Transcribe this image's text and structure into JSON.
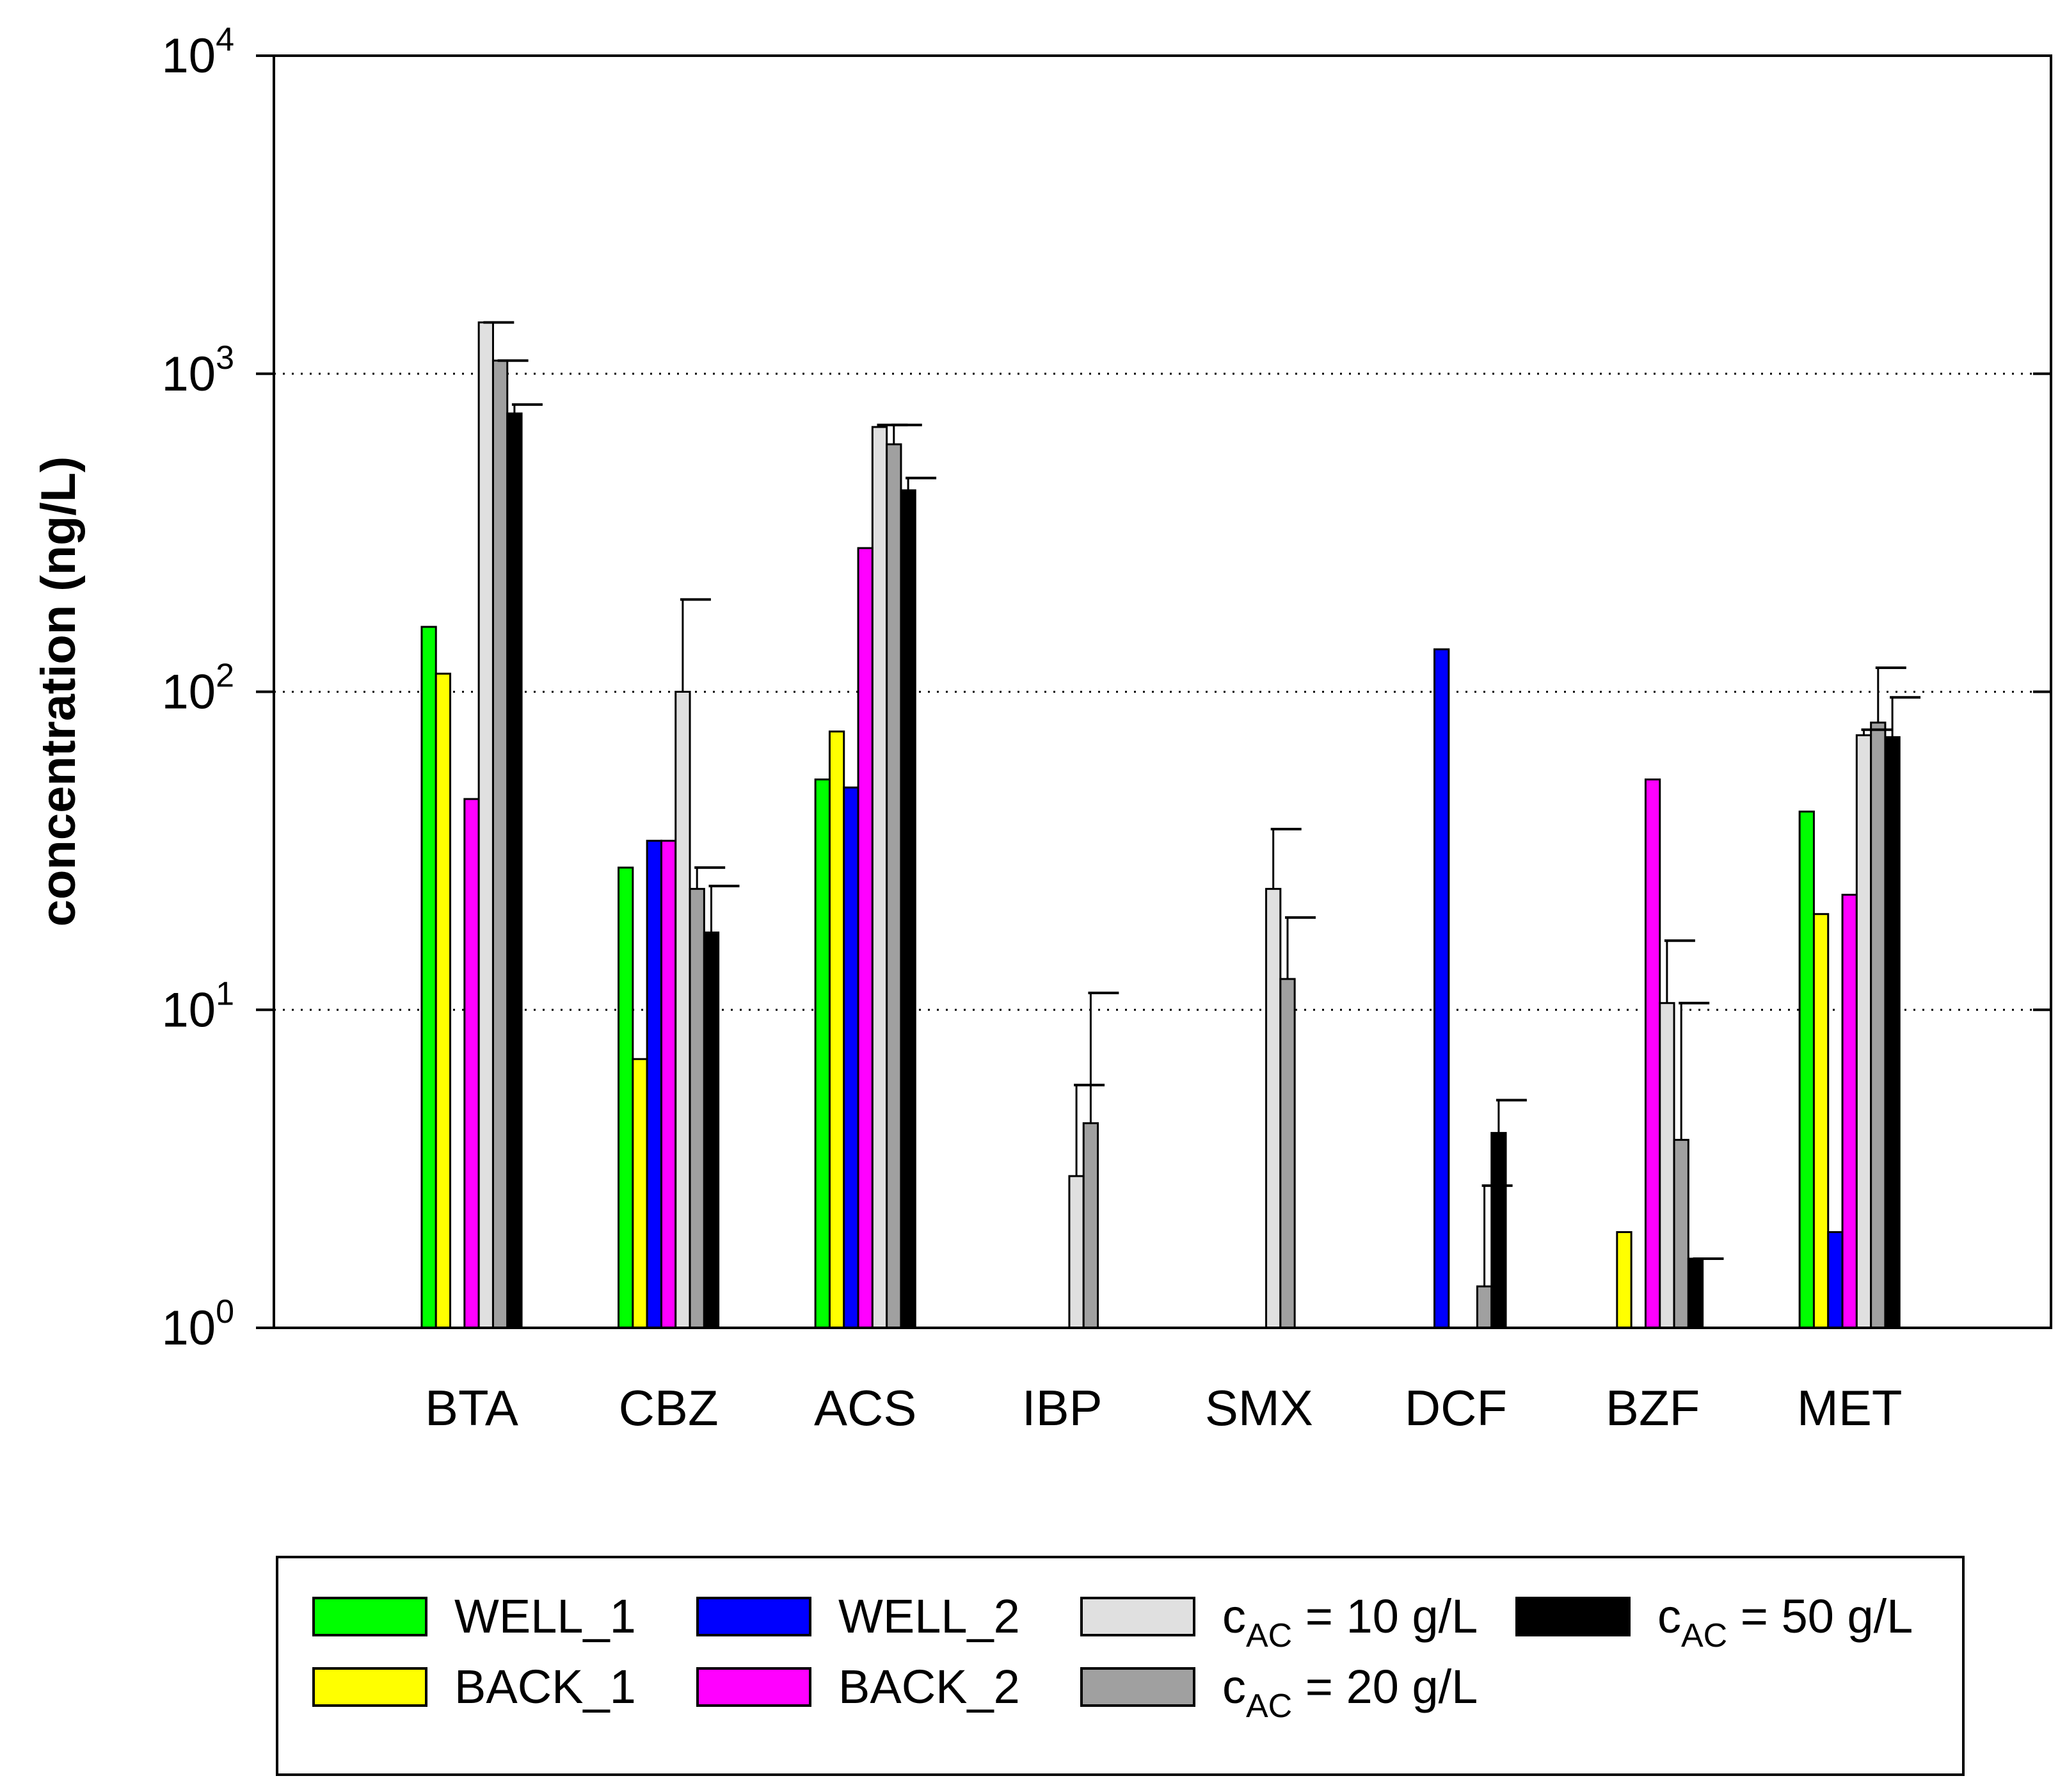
{
  "chart_data": {
    "type": "bar",
    "yscale": "log",
    "ylabel": "concentration (ng/L)",
    "ylim": [
      1,
      10000
    ],
    "y_ticks": [
      {
        "base": "10",
        "exp": "0",
        "value": 1
      },
      {
        "base": "10",
        "exp": "1",
        "value": 10
      },
      {
        "base": "10",
        "exp": "2",
        "value": 100
      },
      {
        "base": "10",
        "exp": "3",
        "value": 1000
      },
      {
        "base": "10",
        "exp": "4",
        "value": 10000
      }
    ],
    "gridlines": [
      10,
      100,
      1000
    ],
    "categories": [
      "BTA",
      "CBZ",
      "ACS",
      "IBP",
      "SMX",
      "DCF",
      "BZF",
      "MET"
    ],
    "series": [
      {
        "name": "WELL_1",
        "color": "#00ff00",
        "values": [
          160,
          28,
          53,
          null,
          null,
          null,
          null,
          42
        ],
        "errors": [
          null,
          null,
          null,
          null,
          null,
          null,
          null,
          null
        ]
      },
      {
        "name": "BACK_1",
        "color": "#ffff00",
        "values": [
          114,
          7,
          75,
          null,
          null,
          null,
          2,
          20
        ],
        "errors": [
          null,
          null,
          null,
          null,
          null,
          null,
          null,
          null
        ]
      },
      {
        "name": "WELL_2",
        "color": "#0000ff",
        "values": [
          null,
          34,
          50,
          null,
          null,
          136,
          null,
          2
        ],
        "errors": [
          null,
          null,
          null,
          null,
          null,
          null,
          null,
          null
        ]
      },
      {
        "name": "BACK_2",
        "color": "#ff00ff",
        "values": [
          46,
          34,
          283,
          null,
          null,
          null,
          53,
          23
        ],
        "errors": [
          null,
          null,
          null,
          null,
          null,
          null,
          null,
          null
        ]
      },
      {
        "name": "c_AC = 10 g/L",
        "label_main": "c",
        "label_sub": "AC",
        "label_rest": " = 10 g/L",
        "color": "#e0e0e0",
        "values": [
          1450,
          100,
          680,
          3,
          24,
          null,
          10.5,
          73
        ],
        "errors": [
          1450,
          195,
          690,
          5.8,
          37,
          null,
          16.5,
          76
        ]
      },
      {
        "name": "c_AC = 20 g/L",
        "label_main": "c",
        "label_sub": "AC",
        "label_rest": " = 20 g/L",
        "color": "#a0a0a0",
        "values": [
          1100,
          24,
          600,
          4.4,
          12.5,
          1.35,
          3.9,
          80
        ],
        "errors": [
          1100,
          28,
          690,
          11.3,
          19.5,
          2.8,
          10.5,
          119
        ]
      },
      {
        "name": "c_AC = 50 g/L",
        "label_main": "c",
        "label_sub": "AC",
        "label_rest": " = 50 g/L",
        "color": "#000000",
        "values": [
          750,
          17.5,
          430,
          null,
          null,
          4.1,
          1.65,
          72
        ],
        "errors": [
          800,
          24.5,
          470,
          null,
          null,
          5.2,
          1.65,
          96
        ]
      }
    ],
    "legend": {
      "position": "bottom"
    }
  }
}
